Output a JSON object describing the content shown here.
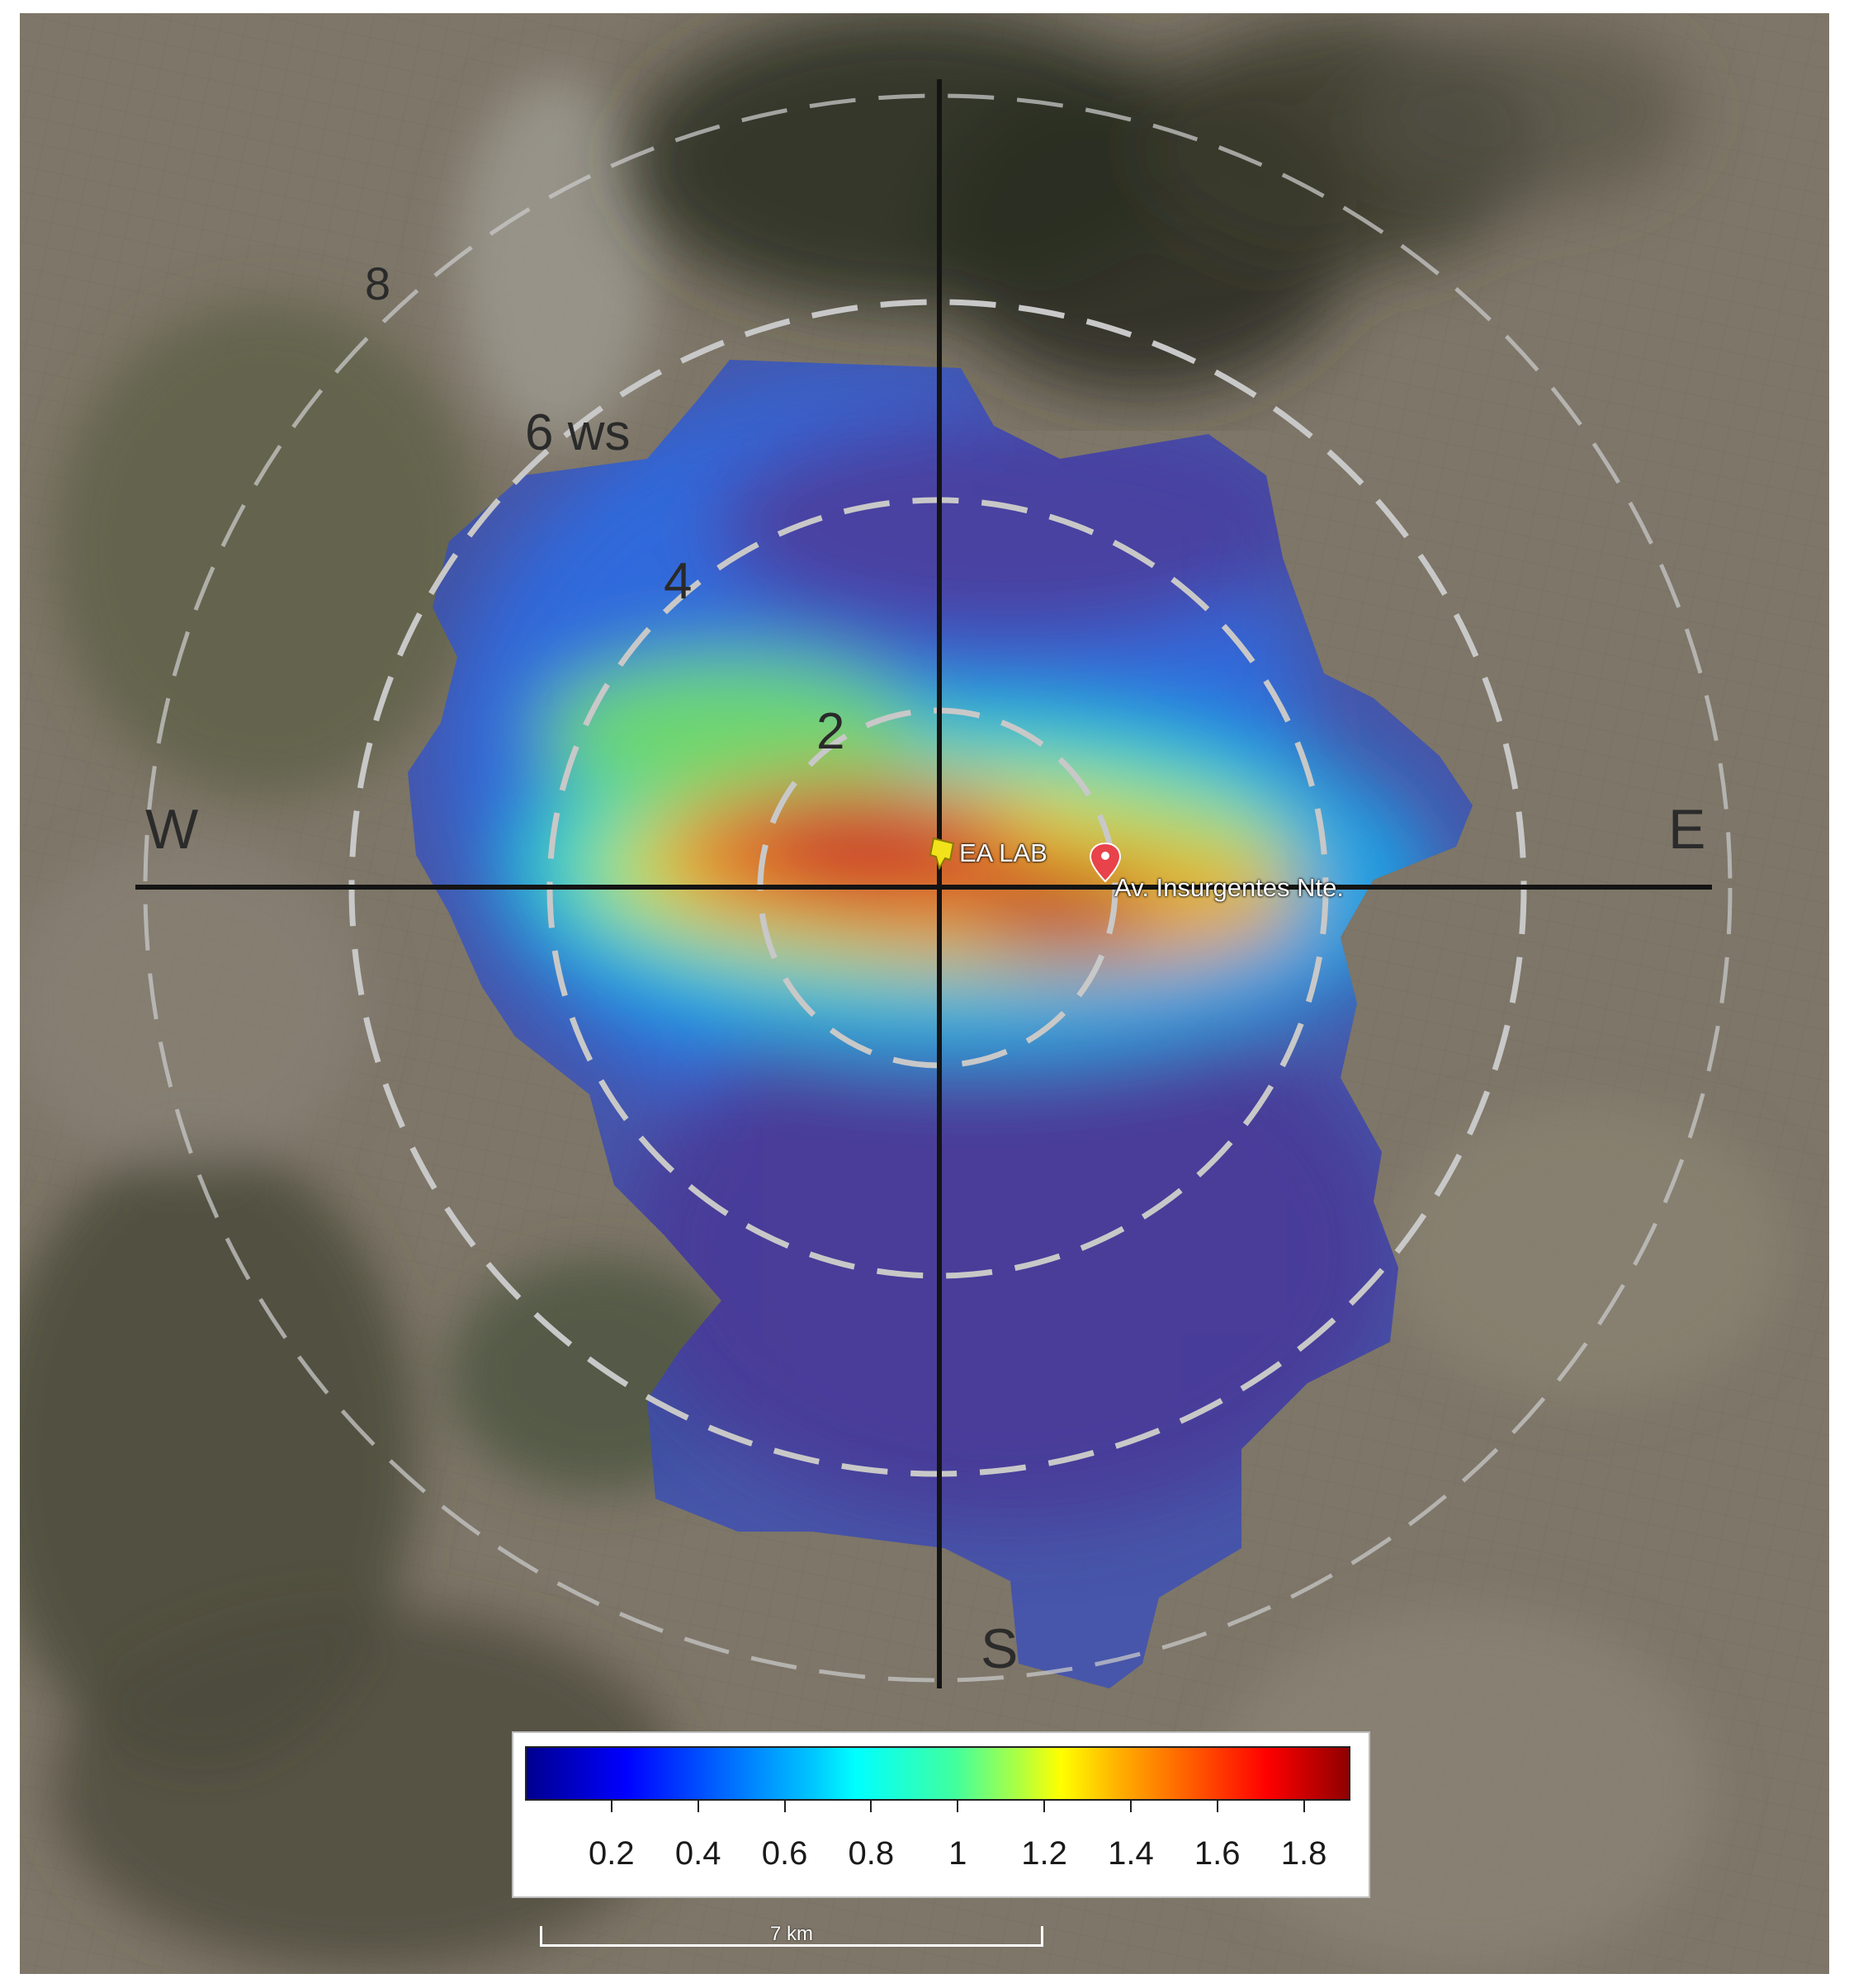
{
  "map": {
    "direction_labels": {
      "west": "W",
      "east": "E",
      "south": "S"
    },
    "ring_labels": {
      "r2": "2",
      "r4": "4",
      "r6": "6 ws",
      "r8": "8"
    },
    "places": {
      "site": {
        "name": "EA LAB",
        "marker_color": "#f2e21a",
        "icon": "pushpin-icon"
      },
      "street": {
        "name": "Av. Insurgentes Nte.",
        "marker_color": "#e8424a",
        "icon": "location-pin-icon"
      }
    },
    "colors": {
      "ring": "#c8c8c8",
      "axes": "#141414"
    }
  },
  "colorbar": {
    "ticks": [
      "0.2",
      "0.4",
      "0.6",
      "0.8",
      "1",
      "1.2",
      "1.4",
      "1.6",
      "1.8"
    ],
    "colormap": "jet"
  },
  "scalebar": {
    "label": "7 km"
  }
}
